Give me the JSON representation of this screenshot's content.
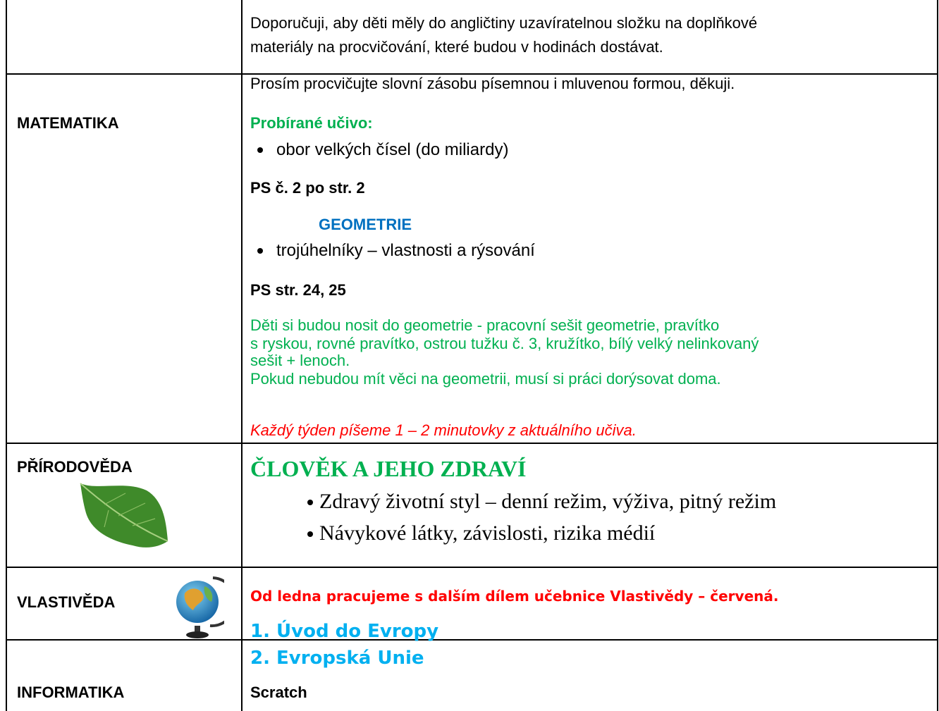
{
  "table": {
    "rows": [
      {
        "lines": [
          "Doporučuji, aby děti měly do angličtiny uzavíratelnou složku na doplňkové",
          "materiály na procvičování, které budou v hodinách dostávat.",
          "Prosím procvičujte slovní zásobu písemnou i mluvenou formou, děkuji."
        ]
      },
      {
        "subject": "MATEMATIKA",
        "heading": "Probírané učivo:",
        "items": [
          "obor velkých čísel (do miliardy)",
          "trojúhelníky – vlastnosti a rýsování"
        ],
        "note1": "PS č. 2 po str. 2",
        "subheading": "GEOMETRIE",
        "note2": "PS str. 24, 25",
        "green_lines": [
          "Děti si budou nosit do geometrie - pracovní sešit geometrie, pravítko",
          "s ryskou, rovné pravítko, ostrou tužku č. 3, kružítko, bílý velký nelinkovaný",
          "sešit + lenoch.",
          "Pokud nebudou mít věci na geometrii, musí si práci dorýsovat doma."
        ],
        "italic_note": "Každý týden píšeme 1 – 2 minutovky z aktuálního učiva."
      },
      {
        "subject": "PŘÍRODOVĚDA",
        "heading": "ČLOVĚK A JEHO ZDRAVÍ",
        "items": [
          "Zdravý životní styl – denní režim, výživa, pitný režim",
          "Návykové látky, závislosti, rizika médií"
        ]
      },
      {
        "subject": "VLASTIVĚDA",
        "notice": "Od ledna pracujeme s dalším dílem učebnice Vlastivědy – červená.",
        "topics": [
          "1. Úvod do Evropy",
          "2. Evropská Unie"
        ]
      },
      {
        "subject": "INFORMATIKA",
        "content": "Scratch"
      }
    ]
  }
}
